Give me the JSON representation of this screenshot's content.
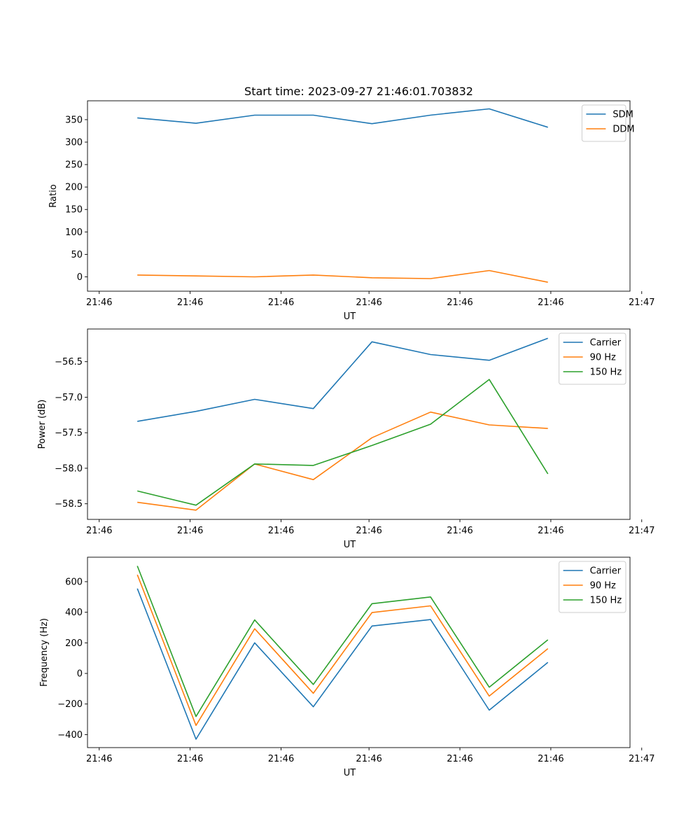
{
  "title": "Start time: 2023-09-27 21:46:01.703832",
  "colors": {
    "blue": "#1f77b4",
    "orange": "#ff7f0e",
    "green": "#2ca02c"
  },
  "chart_data": [
    {
      "type": "line",
      "xlabel": "UT",
      "ylabel": "Ratio",
      "x": [
        1,
        2,
        3,
        4,
        5,
        6,
        7,
        8
      ],
      "xlim": [
        0.15,
        9.4
      ],
      "xticks": [
        0.35,
        1.9,
        3.45,
        4.95,
        6.5,
        8.05,
        9.6
      ],
      "xtick_labels": [
        "21:46",
        "21:46",
        "21:46",
        "21:46",
        "21:46",
        "21:46",
        "21:47"
      ],
      "ylim": [
        -32,
        392
      ],
      "yticks": [
        0,
        50,
        100,
        150,
        200,
        250,
        300,
        350
      ],
      "ytick_labels": [
        "0",
        "50",
        "100",
        "150",
        "200",
        "250",
        "300",
        "350"
      ],
      "legend": "top-right",
      "series": [
        {
          "name": "SDM",
          "color": "#1f77b4",
          "values": [
            354,
            342,
            360,
            360,
            341,
            360,
            374,
            333
          ]
        },
        {
          "name": "DDM",
          "color": "#ff7f0e",
          "values": [
            4,
            2,
            0,
            4,
            -2,
            -4,
            14,
            -12
          ]
        }
      ]
    },
    {
      "type": "line",
      "xlabel": "UT",
      "ylabel": "Power (dB)",
      "x": [
        1,
        2,
        3,
        4,
        5,
        6,
        7,
        8
      ],
      "xlim": [
        0.15,
        9.4
      ],
      "xticks": [
        0.35,
        1.9,
        3.45,
        4.95,
        6.5,
        8.05,
        9.6
      ],
      "xtick_labels": [
        "21:46",
        "21:46",
        "21:46",
        "21:46",
        "21:46",
        "21:46",
        "21:47"
      ],
      "ylim": [
        -58.72,
        -56.04
      ],
      "yticks": [
        -58.5,
        -58.0,
        -57.5,
        -57.0,
        -56.5
      ],
      "ytick_labels": [
        "−58.5",
        "−58.0",
        "−57.5",
        "−57.0",
        "−56.5"
      ],
      "legend": "top-right",
      "series": [
        {
          "name": "Carrier",
          "color": "#1f77b4",
          "values": [
            -57.34,
            -57.2,
            -57.03,
            -57.16,
            -56.22,
            -56.4,
            -56.48,
            -56.17
          ]
        },
        {
          "name": "90 Hz",
          "color": "#ff7f0e",
          "values": [
            -58.48,
            -58.59,
            -57.94,
            -58.16,
            -57.57,
            -57.21,
            -57.39,
            -57.44
          ]
        },
        {
          "name": "150 Hz",
          "color": "#2ca02c",
          "values": [
            -58.32,
            -58.52,
            -57.94,
            -57.96,
            -57.68,
            -57.38,
            -56.75,
            -58.08
          ]
        }
      ]
    },
    {
      "type": "line",
      "xlabel": "UT",
      "ylabel": "Frequency (Hz)",
      "x": [
        1,
        2,
        3,
        4,
        5,
        6,
        7,
        8
      ],
      "xlim": [
        0.15,
        9.4
      ],
      "xticks": [
        0.35,
        1.9,
        3.45,
        4.95,
        6.5,
        8.05,
        9.6
      ],
      "xtick_labels": [
        "21:46",
        "21:46",
        "21:46",
        "21:46",
        "21:46",
        "21:46",
        "21:47"
      ],
      "ylim": [
        -485,
        760
      ],
      "yticks": [
        -400,
        -200,
        0,
        200,
        400,
        600
      ],
      "ytick_labels": [
        "−400",
        "−200",
        "0",
        "200",
        "400",
        "600"
      ],
      "legend": "top-right",
      "series": [
        {
          "name": "Carrier",
          "color": "#1f77b4",
          "values": [
            555,
            -430,
            200,
            -218,
            310,
            352,
            -240,
            72
          ]
        },
        {
          "name": "90 Hz",
          "color": "#ff7f0e",
          "values": [
            645,
            -340,
            292,
            -130,
            398,
            442,
            -148,
            162
          ]
        },
        {
          "name": "150 Hz",
          "color": "#2ca02c",
          "values": [
            703,
            -282,
            350,
            -72,
            456,
            500,
            -90,
            220
          ]
        }
      ]
    }
  ]
}
